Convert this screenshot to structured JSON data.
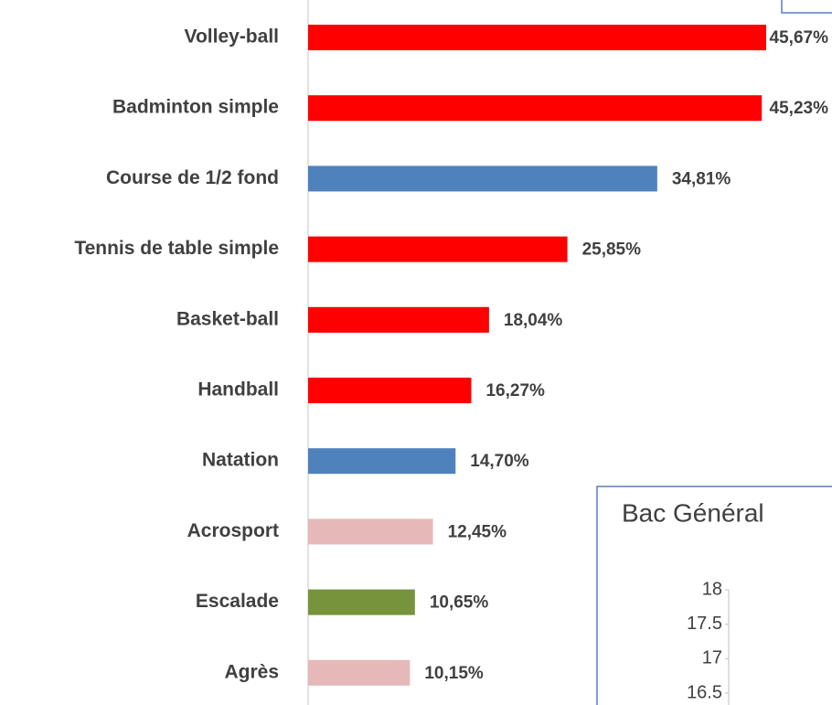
{
  "chart_data": [
    {
      "type": "barh",
      "categories": [
        "Volley-ball",
        "Badminton simple",
        "Course de 1/2 fond",
        "Tennis de table simple",
        "Basket-ball",
        "Handball",
        "Natation",
        "Acrosport",
        "Escalade",
        "Agrès"
      ],
      "values": [
        45.67,
        45.23,
        34.81,
        25.85,
        18.04,
        16.27,
        14.7,
        12.45,
        10.65,
        10.15
      ],
      "value_labels": [
        "45,67%",
        "45,23%",
        "34,81%",
        "25,85%",
        "18,04%",
        "16,27%",
        "14,70%",
        "12,45%",
        "10,65%",
        "10,15%"
      ],
      "colors": [
        "#ff0000",
        "#ff0000",
        "#4f81bd",
        "#ff0000",
        "#ff0000",
        "#ff0000",
        "#4f81bd",
        "#e6b9b8",
        "#77933c",
        "#e6b9b8"
      ]
    },
    {
      "type": "line",
      "title": "Bac Général",
      "ylim": [
        16.5,
        18
      ],
      "yticks": [
        18,
        17.5,
        17,
        16.5
      ]
    }
  ]
}
